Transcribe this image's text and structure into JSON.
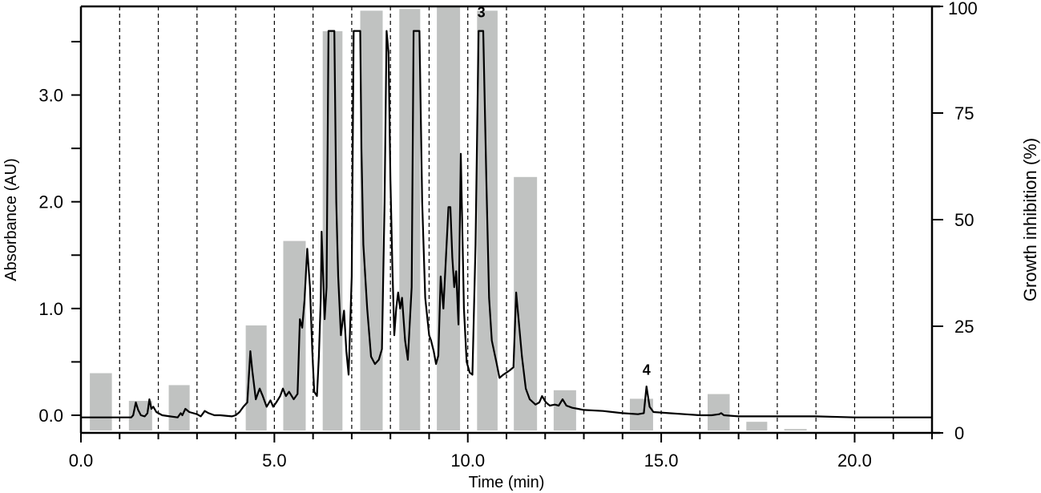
{
  "chart_data": {
    "type": "bar+line",
    "title": "",
    "xlabel": "Time (min)",
    "ylabel_left": "Absorbance (AU)",
    "ylabel_right": "Growth inhibition (%)",
    "xlim": [
      0.0,
      22.0
    ],
    "ylim_left": [
      -0.165,
      3.83
    ],
    "ylim_right": [
      0,
      100
    ],
    "x_ticks_major": [
      0.0,
      5.0,
      10.0,
      15.0,
      20.0
    ],
    "x_tick_labels": [
      "0.0",
      "5.0",
      "10.0",
      "15.0",
      "20.0"
    ],
    "x_ticks_minor": [
      1,
      2,
      3,
      4,
      6,
      7,
      8,
      9,
      11,
      12,
      13,
      14,
      16,
      17,
      18,
      19,
      21,
      22
    ],
    "y_left_ticks": [
      0.0,
      1.0,
      2.0,
      3.0
    ],
    "y_left_tick_labels": [
      "0.0",
      "1.0",
      "2.0",
      "3.0"
    ],
    "y_left_minor_ticks": [
      0.5,
      1.5,
      2.5,
      3.5
    ],
    "y_right_ticks": [
      0,
      25,
      50,
      75,
      100
    ],
    "y_right_tick_labels": [
      "0",
      "25",
      "50",
      "75",
      "100"
    ],
    "fraction_dividers_min": [
      1,
      2,
      3,
      4,
      5,
      6,
      7,
      8,
      9,
      10,
      11,
      12,
      13,
      14,
      15,
      16,
      17,
      18,
      19,
      20,
      21,
      22
    ],
    "grid": "vertical dashed lines at each minute",
    "legend": null,
    "series": [
      {
        "name": "Growth inhibition (%)",
        "type": "bar",
        "axis": "right",
        "color": "#c0c2c1",
        "bars": [
          {
            "x0": 0.23,
            "x1": 0.8,
            "value": 14.0
          },
          {
            "x0": 1.24,
            "x1": 1.84,
            "value": 7.5
          },
          {
            "x0": 2.27,
            "x1": 2.81,
            "value": 11.2
          },
          {
            "x0": 4.26,
            "x1": 4.8,
            "value": 25.2
          },
          {
            "x0": 5.23,
            "x1": 5.81,
            "value": 45.0
          },
          {
            "x0": 6.25,
            "x1": 6.76,
            "value": 94.2
          },
          {
            "x0": 7.22,
            "x1": 7.8,
            "value": 99.0
          },
          {
            "x0": 8.23,
            "x1": 8.77,
            "value": 99.4
          },
          {
            "x0": 9.2,
            "x1": 9.8,
            "value": 100.0
          },
          {
            "x0": 10.24,
            "x1": 10.77,
            "value": 99.0
          },
          {
            "x0": 11.19,
            "x1": 11.79,
            "value": 60.0
          },
          {
            "x0": 12.22,
            "x1": 12.8,
            "value": 10.0
          },
          {
            "x0": 14.19,
            "x1": 14.79,
            "value": 8.0
          },
          {
            "x0": 16.2,
            "x1": 16.77,
            "value": 9.1
          },
          {
            "x0": 17.2,
            "x1": 17.74,
            "value": 2.6
          },
          {
            "x0": 18.18,
            "x1": 18.76,
            "value": 0.9
          }
        ]
      },
      {
        "name": "Absorbance (AU)",
        "type": "line",
        "axis": "left",
        "color": "#000000",
        "points": [
          [
            0.0,
            -0.02
          ],
          [
            1.3,
            -0.02
          ],
          [
            1.35,
            0.0
          ],
          [
            1.42,
            0.12
          ],
          [
            1.48,
            0.05
          ],
          [
            1.55,
            0.0
          ],
          [
            1.65,
            -0.01
          ],
          [
            1.72,
            0.02
          ],
          [
            1.77,
            0.15
          ],
          [
            1.82,
            0.06
          ],
          [
            1.87,
            0.08
          ],
          [
            1.95,
            0.03
          ],
          [
            2.1,
            0.0
          ],
          [
            2.3,
            -0.01
          ],
          [
            2.5,
            -0.02
          ],
          [
            2.58,
            0.02
          ],
          [
            2.62,
            0.0
          ],
          [
            2.7,
            0.06
          ],
          [
            2.8,
            0.03
          ],
          [
            3.0,
            0.01
          ],
          [
            3.1,
            -0.01
          ],
          [
            3.2,
            0.04
          ],
          [
            3.3,
            0.02
          ],
          [
            3.45,
            0.0
          ],
          [
            3.6,
            0.0
          ],
          [
            3.9,
            -0.01
          ],
          [
            4.0,
            0.0
          ],
          [
            4.1,
            0.03
          ],
          [
            4.2,
            0.08
          ],
          [
            4.3,
            0.12
          ],
          [
            4.38,
            0.6
          ],
          [
            4.43,
            0.42
          ],
          [
            4.52,
            0.15
          ],
          [
            4.62,
            0.25
          ],
          [
            4.7,
            0.18
          ],
          [
            4.8,
            0.08
          ],
          [
            4.9,
            0.14
          ],
          [
            4.97,
            0.08
          ],
          [
            5.05,
            0.12
          ],
          [
            5.15,
            0.18
          ],
          [
            5.22,
            0.25
          ],
          [
            5.3,
            0.18
          ],
          [
            5.38,
            0.22
          ],
          [
            5.5,
            0.15
          ],
          [
            5.6,
            0.2
          ],
          [
            5.66,
            0.9
          ],
          [
            5.72,
            0.82
          ],
          [
            5.78,
            1.08
          ],
          [
            5.85,
            1.56
          ],
          [
            5.92,
            1.2
          ],
          [
            5.98,
            0.6
          ],
          [
            6.03,
            0.22
          ],
          [
            6.1,
            0.18
          ],
          [
            6.15,
            0.55
          ],
          [
            6.2,
            1.1
          ],
          [
            6.22,
            1.72
          ],
          [
            6.3,
            0.9
          ],
          [
            6.35,
            1.2
          ],
          [
            6.4,
            3.6
          ],
          [
            6.55,
            3.6
          ],
          [
            6.6,
            2.0
          ],
          [
            6.65,
            1.3
          ],
          [
            6.72,
            0.75
          ],
          [
            6.8,
            0.98
          ],
          [
            6.86,
            0.6
          ],
          [
            6.92,
            0.38
          ],
          [
            7.0,
            1.3
          ],
          [
            7.05,
            3.6
          ],
          [
            7.22,
            3.6
          ],
          [
            7.25,
            2.5
          ],
          [
            7.3,
            1.6
          ],
          [
            7.4,
            1.0
          ],
          [
            7.5,
            0.55
          ],
          [
            7.6,
            0.48
          ],
          [
            7.7,
            0.52
          ],
          [
            7.78,
            0.62
          ],
          [
            7.85,
            2.0
          ],
          [
            7.9,
            3.6
          ],
          [
            7.95,
            3.4
          ],
          [
            8.0,
            2.2
          ],
          [
            8.05,
            1.4
          ],
          [
            8.1,
            0.75
          ],
          [
            8.15,
            1.0
          ],
          [
            8.2,
            1.15
          ],
          [
            8.25,
            1.0
          ],
          [
            8.3,
            1.1
          ],
          [
            8.38,
            0.7
          ],
          [
            8.45,
            0.52
          ],
          [
            8.55,
            1.2
          ],
          [
            8.6,
            3.6
          ],
          [
            8.75,
            3.6
          ],
          [
            8.82,
            2.0
          ],
          [
            8.9,
            1.1
          ],
          [
            9.0,
            0.75
          ],
          [
            9.05,
            0.7
          ],
          [
            9.12,
            0.6
          ],
          [
            9.18,
            0.48
          ],
          [
            9.24,
            0.56
          ],
          [
            9.3,
            1.3
          ],
          [
            9.37,
            1.0
          ],
          [
            9.5,
            1.95
          ],
          [
            9.55,
            1.95
          ],
          [
            9.6,
            1.48
          ],
          [
            9.65,
            1.2
          ],
          [
            9.7,
            1.35
          ],
          [
            9.76,
            0.85
          ],
          [
            9.82,
            2.45
          ],
          [
            9.9,
            1.0
          ],
          [
            9.97,
            0.5
          ],
          [
            10.05,
            0.4
          ],
          [
            10.12,
            0.38
          ],
          [
            10.2,
            1.6
          ],
          [
            10.28,
            3.6
          ],
          [
            10.4,
            3.6
          ],
          [
            10.48,
            2.2
          ],
          [
            10.55,
            1.1
          ],
          [
            10.62,
            0.7
          ],
          [
            10.75,
            0.48
          ],
          [
            10.82,
            0.35
          ],
          [
            10.92,
            0.38
          ],
          [
            11.0,
            0.4
          ],
          [
            11.08,
            0.42
          ],
          [
            11.18,
            0.45
          ],
          [
            11.25,
            1.15
          ],
          [
            11.3,
            0.95
          ],
          [
            11.4,
            0.55
          ],
          [
            11.5,
            0.25
          ],
          [
            11.6,
            0.15
          ],
          [
            11.75,
            0.1
          ],
          [
            11.85,
            0.12
          ],
          [
            11.92,
            0.18
          ],
          [
            12.02,
            0.12
          ],
          [
            12.12,
            0.09
          ],
          [
            12.25,
            0.1
          ],
          [
            12.35,
            0.09
          ],
          [
            12.45,
            0.15
          ],
          [
            12.55,
            0.09
          ],
          [
            12.7,
            0.07
          ],
          [
            12.85,
            0.06
          ],
          [
            13.0,
            0.05
          ],
          [
            13.5,
            0.04
          ],
          [
            14.0,
            0.02
          ],
          [
            14.4,
            0.01
          ],
          [
            14.55,
            0.02
          ],
          [
            14.62,
            0.27
          ],
          [
            14.7,
            0.08
          ],
          [
            14.8,
            0.03
          ],
          [
            15.2,
            0.02
          ],
          [
            15.6,
            0.01
          ],
          [
            16.0,
            0.0
          ],
          [
            16.3,
            0.0
          ],
          [
            16.5,
            0.01
          ],
          [
            16.55,
            0.02
          ],
          [
            16.62,
            0.0
          ],
          [
            17.0,
            -0.01
          ],
          [
            18.0,
            -0.01
          ],
          [
            19.0,
            -0.01
          ],
          [
            20.0,
            -0.02
          ],
          [
            21.0,
            -0.02
          ],
          [
            22.0,
            -0.02
          ]
        ]
      }
    ],
    "annotations": [
      {
        "text": "3",
        "x": 10.35,
        "y_left": 3.73
      },
      {
        "text": "4",
        "x": 14.62,
        "y_left": 0.38
      }
    ]
  },
  "labels": {
    "xlabel": "Time (min)",
    "ylabel_left": "Absorbance (AU)",
    "ylabel_right": "Growth inhibition (%)"
  },
  "colors": {
    "bar": "#c0c2c1",
    "line": "#000000",
    "axis": "#000000",
    "grid": "#000000"
  }
}
